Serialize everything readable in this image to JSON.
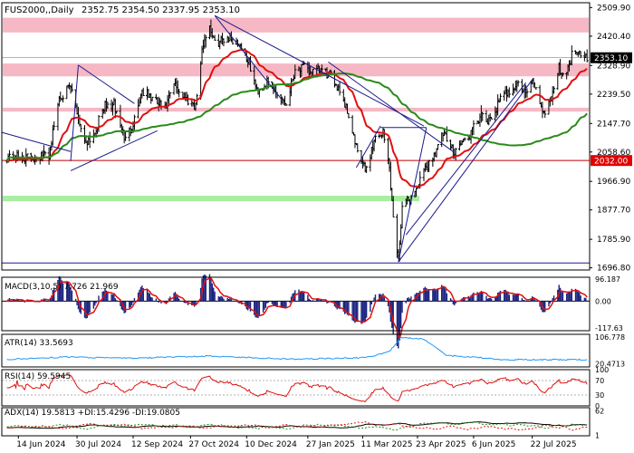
{
  "header": {
    "symbol": "FUS2000,,Daily",
    "ohlc": "2352.75 2354.50 2337.95 2353.10"
  },
  "colors": {
    "background": "#ffffff",
    "border": "#000000",
    "candle": "#000000",
    "ma_red": "#e01010",
    "ma_green": "#2a8a1a",
    "trendline": "#1a1a8c",
    "resistance_zone": "#f6b8c4",
    "support_zone": "#a8eea0",
    "level_line": "#c00000",
    "price_tag": "#e00000",
    "macd_hist": "#1a237e",
    "macd_signal": "#e01010",
    "atr_line": "#2196f3",
    "rsi_line": "#e01010",
    "adx_line": "#000000",
    "plus_di": "#2a8a1a",
    "minus_di": "#e01010"
  },
  "chart_data": [
    {
      "type": "candlestick",
      "title": "FUS2000,,Daily",
      "ylim": [
        1690,
        2525
      ],
      "y_ticks": [
        "2509.90",
        "2420.40",
        "2328.90",
        "2239.50",
        "2147.70",
        "2058.60",
        "1966.90",
        "1877.70",
        "1785.90",
        "1696.80"
      ],
      "x_tick_labels": [
        "14 Jun 2024",
        "30 Jul 2024",
        "12 Sep 2024",
        "27 Oct 2024",
        "10 Dec 2024",
        "27 Jan 2025",
        "11 Mar 2025",
        "23 Apr 2025",
        "6 Jun 2025",
        "22 Jul 2025"
      ],
      "close_anchors": [
        {
          "date": "2024-06-05",
          "close": 2045
        },
        {
          "date": "2024-06-20",
          "close": 2040
        },
        {
          "date": "2024-07-08",
          "close": 2050
        },
        {
          "date": "2024-07-16",
          "close": 2230
        },
        {
          "date": "2024-07-25",
          "close": 2260
        },
        {
          "date": "2024-08-05",
          "close": 2090
        },
        {
          "date": "2024-08-12",
          "close": 2110
        },
        {
          "date": "2024-08-20",
          "close": 2200
        },
        {
          "date": "2024-08-28",
          "close": 2205
        },
        {
          "date": "2024-09-06",
          "close": 2095
        },
        {
          "date": "2024-09-12",
          "close": 2150
        },
        {
          "date": "2024-09-19",
          "close": 2250
        },
        {
          "date": "2024-09-30",
          "close": 2215
        },
        {
          "date": "2024-10-07",
          "close": 2190
        },
        {
          "date": "2024-10-14",
          "close": 2270
        },
        {
          "date": "2024-10-22",
          "close": 2230
        },
        {
          "date": "2024-10-31",
          "close": 2205
        },
        {
          "date": "2024-11-06",
          "close": 2400
        },
        {
          "date": "2024-11-11",
          "close": 2455
        },
        {
          "date": "2024-11-15",
          "close": 2395
        },
        {
          "date": "2024-11-25",
          "close": 2420
        },
        {
          "date": "2024-12-05",
          "close": 2395
        },
        {
          "date": "2024-12-12",
          "close": 2335
        },
        {
          "date": "2024-12-18",
          "close": 2250
        },
        {
          "date": "2024-12-26",
          "close": 2275
        },
        {
          "date": "2025-01-06",
          "close": 2230
        },
        {
          "date": "2025-01-10",
          "close": 2210
        },
        {
          "date": "2025-01-17",
          "close": 2320
        },
        {
          "date": "2025-01-24",
          "close": 2320
        },
        {
          "date": "2025-01-30",
          "close": 2305
        },
        {
          "date": "2025-02-06",
          "close": 2315
        },
        {
          "date": "2025-02-14",
          "close": 2295
        },
        {
          "date": "2025-02-21",
          "close": 2255
        },
        {
          "date": "2025-02-28",
          "close": 2175
        },
        {
          "date": "2025-03-06",
          "close": 2070
        },
        {
          "date": "2025-03-13",
          "close": 2000
        },
        {
          "date": "2025-03-21",
          "close": 2105
        },
        {
          "date": "2025-03-27",
          "close": 2120
        },
        {
          "date": "2025-04-01",
          "close": 2010
        },
        {
          "date": "2025-04-04",
          "close": 1850
        },
        {
          "date": "2025-04-08",
          "close": 1725
        },
        {
          "date": "2025-04-11",
          "close": 1890
        },
        {
          "date": "2025-04-17",
          "close": 1910
        },
        {
          "date": "2025-04-24",
          "close": 1960
        },
        {
          "date": "2025-04-30",
          "close": 2010
        },
        {
          "date": "2025-05-06",
          "close": 2050
        },
        {
          "date": "2025-05-13",
          "close": 2115
        },
        {
          "date": "2025-05-21",
          "close": 2060
        },
        {
          "date": "2025-05-28",
          "close": 2090
        },
        {
          "date": "2025-06-03",
          "close": 2110
        },
        {
          "date": "2025-06-11",
          "close": 2170
        },
        {
          "date": "2025-06-18",
          "close": 2150
        },
        {
          "date": "2025-06-27",
          "close": 2220
        },
        {
          "date": "2025-07-03",
          "close": 2250
        },
        {
          "date": "2025-07-11",
          "close": 2270
        },
        {
          "date": "2025-07-17",
          "close": 2240
        },
        {
          "date": "2025-07-23",
          "close": 2280
        },
        {
          "date": "2025-07-31",
          "close": 2180
        },
        {
          "date": "2025-08-06",
          "close": 2230
        },
        {
          "date": "2025-08-12",
          "close": 2320
        },
        {
          "date": "2025-08-18",
          "close": 2300
        },
        {
          "date": "2025-08-22",
          "close": 2365
        },
        {
          "date": "2025-08-27",
          "close": 2380
        },
        {
          "date": "2025-09-03",
          "close": 2353
        }
      ],
      "resistance_zones": [
        [
          2432,
          2478
        ],
        [
          2295,
          2335
        ],
        [
          2185,
          2197
        ]
      ],
      "support_zones": [
        [
          1905,
          1922
        ]
      ],
      "horizontal_lines": [
        {
          "price": 2032.0,
          "label": "2032.00"
        },
        {
          "price": 1712,
          "label": ""
        }
      ],
      "last_price": {
        "price": 2353.1,
        "label": "2353.10"
      },
      "moving_averages": [
        {
          "color": "#e01010",
          "period_hint": "medium"
        },
        {
          "color": "#2a8a1a",
          "period_hint": "long"
        }
      ],
      "trendlines": [
        {
          "from": {
            "date": "2024-06-01",
            "price": 2120
          },
          "to": {
            "date": "2024-07-25",
            "price": 2060
          }
        },
        {
          "from": {
            "date": "2024-07-25",
            "price": 2000
          },
          "to": {
            "date": "2024-10-01",
            "price": 2125
          }
        },
        {
          "from": {
            "date": "2024-07-25",
            "price": 2030
          },
          "to": {
            "date": "2024-07-31",
            "price": 2330
          }
        },
        {
          "from": {
            "date": "2024-07-31",
            "price": 2330
          },
          "to": {
            "date": "2024-09-13",
            "price": 2210
          }
        },
        {
          "from": {
            "date": "2024-11-15",
            "price": 2485
          },
          "to": {
            "date": "2025-04-28",
            "price": 2140
          }
        },
        {
          "from": {
            "date": "2024-11-15",
            "price": 2485
          },
          "to": {
            "date": "2025-01-06",
            "price": 2225
          }
        },
        {
          "from": {
            "date": "2025-02-12",
            "price": 2340
          },
          "to": {
            "date": "2025-05-21",
            "price": 2060
          }
        },
        {
          "from": {
            "date": "2025-03-25",
            "price": 2135
          },
          "to": {
            "date": "2025-04-30",
            "price": 2135
          }
        },
        {
          "from": {
            "date": "2025-04-08",
            "price": 1715
          },
          "to": {
            "date": "2025-04-30",
            "price": 2135
          }
        },
        {
          "from": {
            "date": "2025-04-08",
            "price": 1715
          },
          "to": {
            "date": "2025-07-23",
            "price": 2290
          }
        },
        {
          "from": {
            "date": "2025-04-14",
            "price": 1800
          },
          "to": {
            "date": "2025-07-17",
            "price": 2275
          }
        },
        {
          "from": {
            "date": "2025-03-06",
            "price": 2010
          },
          "to": {
            "date": "2025-03-25",
            "price": 2140
          }
        }
      ]
    },
    {
      "type": "histogram",
      "title": "MACD(3",
      "label_text": "MACD(3,10,5) 7.726 21.969",
      "ylim": [
        -130,
        105
      ],
      "y_ticks": [
        "96.187",
        "0.00",
        "-117.63"
      ]
    },
    {
      "type": "line",
      "title": "ATR(14)",
      "label_text": "ATR(14) 33.5693",
      "ylim": [
        10,
        115
      ],
      "y_ticks": [
        "106.778",
        "20.4713"
      ],
      "anchors": [
        {
          "date": "2024-06-05",
          "value": 34
        },
        {
          "date": "2024-07-20",
          "value": 42
        },
        {
          "date": "2024-09-10",
          "value": 38
        },
        {
          "date": "2024-11-10",
          "value": 45
        },
        {
          "date": "2025-01-15",
          "value": 35
        },
        {
          "date": "2025-03-15",
          "value": 40
        },
        {
          "date": "2025-04-01",
          "value": 60
        },
        {
          "date": "2025-04-10",
          "value": 104
        },
        {
          "date": "2025-04-28",
          "value": 100
        },
        {
          "date": "2025-05-15",
          "value": 48
        },
        {
          "date": "2025-07-01",
          "value": 33
        },
        {
          "date": "2025-09-03",
          "value": 33.5693
        }
      ]
    },
    {
      "type": "line",
      "title": "RSI(14)",
      "label_text": "RSI(14) 59.5945",
      "ylim": [
        0,
        100
      ],
      "y_ticks": [
        "100",
        "70",
        "30",
        "0"
      ]
    },
    {
      "type": "line",
      "title": "ADX(14)",
      "label_text": "ADX(14) 19.5813 +DI:15.4296 -DI:19.0805",
      "ylim": [
        0,
        70
      ],
      "y_ticks": [
        "62",
        "1"
      ]
    }
  ]
}
